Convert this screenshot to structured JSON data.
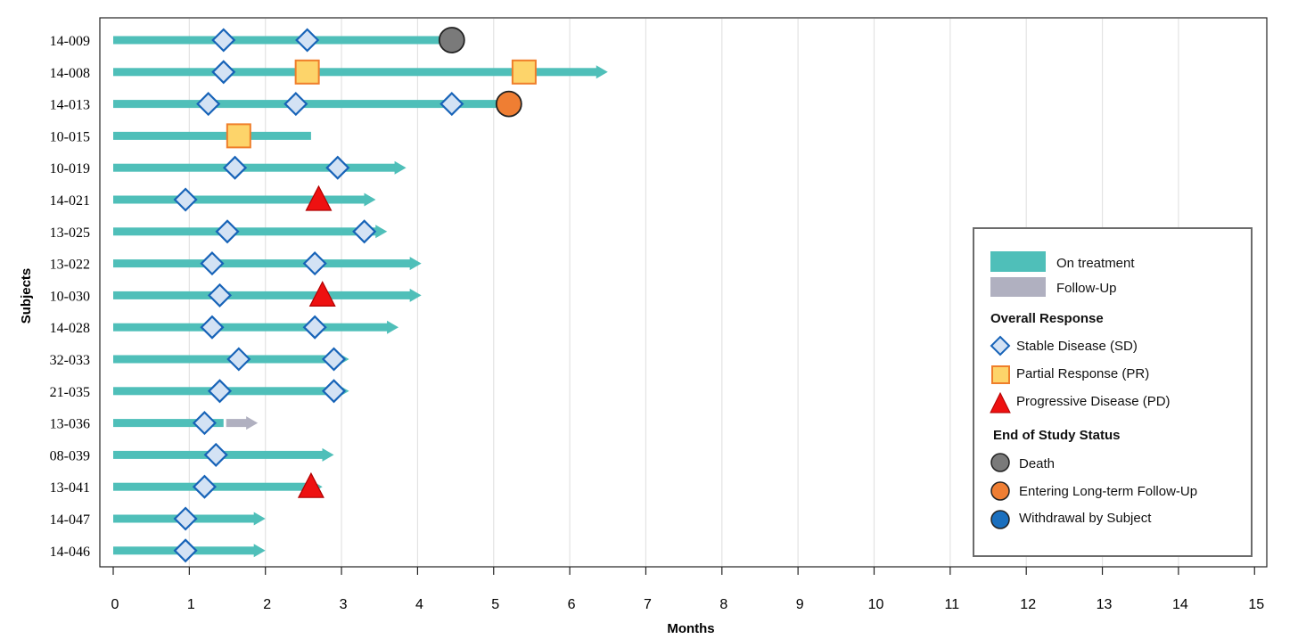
{
  "chart_data": {
    "type": "swimmer",
    "xlabel": "Months",
    "ylabel": "Subjects",
    "xlim": [
      0,
      15
    ],
    "xticks": [
      "0",
      "1",
      "2",
      "3",
      "4",
      "5",
      "6",
      "7",
      "8",
      "9",
      "10",
      "11",
      "12",
      "13",
      "14",
      "15"
    ],
    "grid": "vertical",
    "colors": {
      "on_treatment": "#4fbfb9",
      "follow_up": "#b0b0c0",
      "sd_fill": "#d3e2f4",
      "sd_stroke": "#1763b8",
      "pr_fill": "#fdd46a",
      "pr_stroke": "#ef7e2a",
      "pd_fill": "#ee1111",
      "pd_stroke": "#b00000",
      "death": "#7a7a7a",
      "long_term": "#ef7e33",
      "withdrawal": "#1a6fbe"
    },
    "subjects": [
      {
        "id": "14-009",
        "treatment_end": 4.45,
        "arrow": false,
        "markers": [
          {
            "type": "SD",
            "x": 1.45
          },
          {
            "type": "SD",
            "x": 2.55
          }
        ],
        "status": {
          "type": "death",
          "x": 4.45
        }
      },
      {
        "id": "14-008",
        "treatment_end": 6.5,
        "arrow": true,
        "markers": [
          {
            "type": "SD",
            "x": 1.45
          },
          {
            "type": "PR",
            "x": 2.55
          },
          {
            "type": "PR",
            "x": 5.4
          }
        ]
      },
      {
        "id": "14-013",
        "treatment_end": 5.2,
        "arrow": false,
        "markers": [
          {
            "type": "SD",
            "x": 1.25
          },
          {
            "type": "SD",
            "x": 2.4
          },
          {
            "type": "SD",
            "x": 4.45
          }
        ],
        "status": {
          "type": "long_term",
          "x": 5.2
        }
      },
      {
        "id": "10-015",
        "treatment_end": 2.6,
        "arrow": false,
        "markers": [
          {
            "type": "PR",
            "x": 1.65
          }
        ]
      },
      {
        "id": "10-019",
        "treatment_end": 3.85,
        "arrow": true,
        "markers": [
          {
            "type": "SD",
            "x": 1.6
          },
          {
            "type": "SD",
            "x": 2.95
          }
        ]
      },
      {
        "id": "14-021",
        "treatment_end": 3.45,
        "arrow": true,
        "markers": [
          {
            "type": "SD",
            "x": 0.95
          },
          {
            "type": "PD",
            "x": 2.7
          }
        ]
      },
      {
        "id": "13-025",
        "treatment_end": 3.6,
        "arrow": true,
        "markers": [
          {
            "type": "SD",
            "x": 1.5
          },
          {
            "type": "SD",
            "x": 3.3
          }
        ]
      },
      {
        "id": "13-022",
        "treatment_end": 4.05,
        "arrow": true,
        "markers": [
          {
            "type": "SD",
            "x": 1.3
          },
          {
            "type": "SD",
            "x": 2.65
          }
        ]
      },
      {
        "id": "10-030",
        "treatment_end": 4.05,
        "arrow": true,
        "markers": [
          {
            "type": "SD",
            "x": 1.4
          },
          {
            "type": "PD",
            "x": 2.75
          }
        ]
      },
      {
        "id": "14-028",
        "treatment_end": 3.75,
        "arrow": true,
        "markers": [
          {
            "type": "SD",
            "x": 1.3
          },
          {
            "type": "SD",
            "x": 2.65
          }
        ]
      },
      {
        "id": "32-033",
        "treatment_end": 3.1,
        "arrow": true,
        "markers": [
          {
            "type": "SD",
            "x": 1.65
          },
          {
            "type": "SD",
            "x": 2.9
          }
        ]
      },
      {
        "id": "21-035",
        "treatment_end": 3.1,
        "arrow": true,
        "markers": [
          {
            "type": "SD",
            "x": 1.4
          },
          {
            "type": "SD",
            "x": 2.9
          }
        ]
      },
      {
        "id": "13-036",
        "treatment_end": 1.45,
        "arrow": false,
        "follow_up": [
          1.45,
          1.9
        ],
        "markers": [
          {
            "type": "SD",
            "x": 1.2
          }
        ]
      },
      {
        "id": "08-039",
        "treatment_end": 2.9,
        "arrow": true,
        "markers": [
          {
            "type": "SD",
            "x": 1.35
          }
        ]
      },
      {
        "id": "13-041",
        "treatment_end": 2.75,
        "arrow": true,
        "markers": [
          {
            "type": "SD",
            "x": 1.2
          },
          {
            "type": "PD",
            "x": 2.6
          }
        ]
      },
      {
        "id": "14-047",
        "treatment_end": 2.0,
        "arrow": true,
        "markers": [
          {
            "type": "SD",
            "x": 0.95
          }
        ]
      },
      {
        "id": "14-046",
        "treatment_end": 2.0,
        "arrow": true,
        "markers": [
          {
            "type": "SD",
            "x": 0.95
          }
        ]
      }
    ],
    "legend": {
      "position": "right",
      "on_treatment": "On treatment",
      "follow_up": "Follow-Up",
      "response_title": "Overall Response",
      "sd": "Stable Disease (SD)",
      "pr": "Partial Response (PR)",
      "pd": "Progressive Disease (PD)",
      "status_title": "End of Study Status",
      "death": "Death",
      "long_term": "Entering Long-term Follow-Up",
      "withdrawal": "Withdrawal by Subject"
    }
  }
}
